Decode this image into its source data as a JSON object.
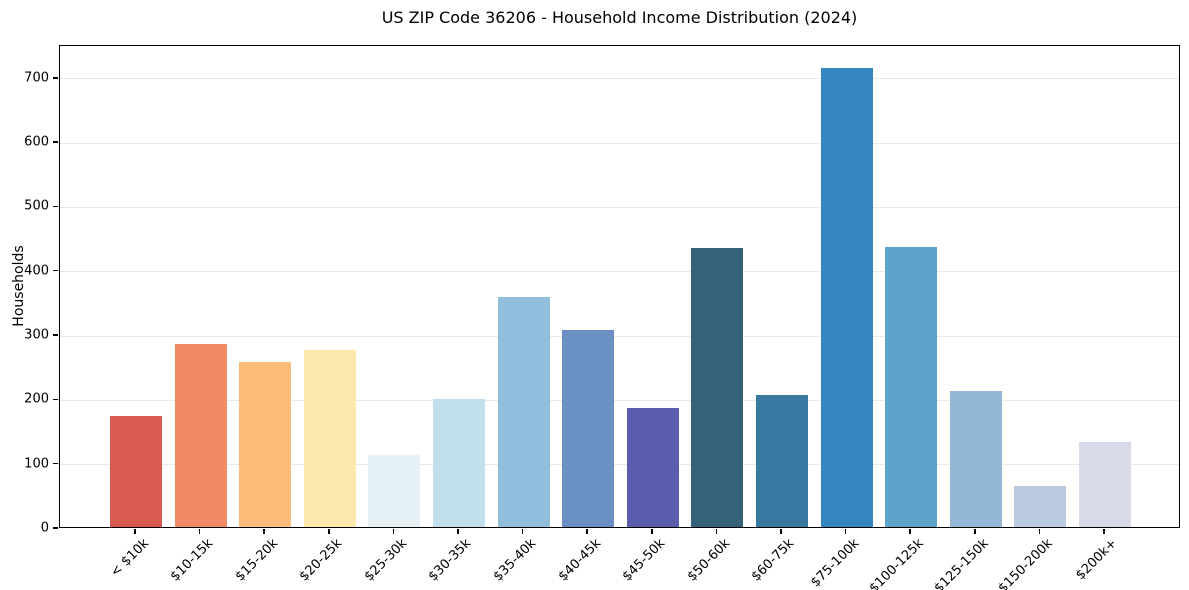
{
  "chart_data": {
    "type": "bar",
    "title": "US ZIP Code 36206 - Household Income Distribution (2024)",
    "xlabel": "",
    "ylabel": "Households",
    "categories": [
      "< $10k",
      "$10-15k",
      "$15-20k",
      "$20-25k",
      "$25-30k",
      "$30-35k",
      "$35-40k",
      "$40-45k",
      "$45-50k",
      "$50-60k",
      "$60-75k",
      "$75-100k",
      "$100-125k",
      "$125-150k",
      "$150-200k",
      "$200k+"
    ],
    "values": [
      172,
      285,
      257,
      275,
      112,
      199,
      358,
      307,
      185,
      434,
      206,
      713,
      435,
      211,
      64,
      132
    ],
    "bar_colors": [
      "#d95b50",
      "#f38a66",
      "#fcbd7b",
      "#fde9ab",
      "#e6f1f6",
      "#c1dfec",
      "#91bedd",
      "#6b90c4",
      "#5a5dab",
      "#36617b",
      "#38799f",
      "#3386c0",
      "#5ca4c9",
      "#92b7d7",
      "#b9c9e0",
      "#d8daea"
    ],
    "ylim": [
      0,
      751
    ],
    "yticks": [
      0,
      100,
      200,
      300,
      400,
      500,
      600,
      700
    ],
    "grid": "horizontal",
    "gridline_color": "#e9e9ef",
    "spine_color": "#000000",
    "legend": "none"
  }
}
